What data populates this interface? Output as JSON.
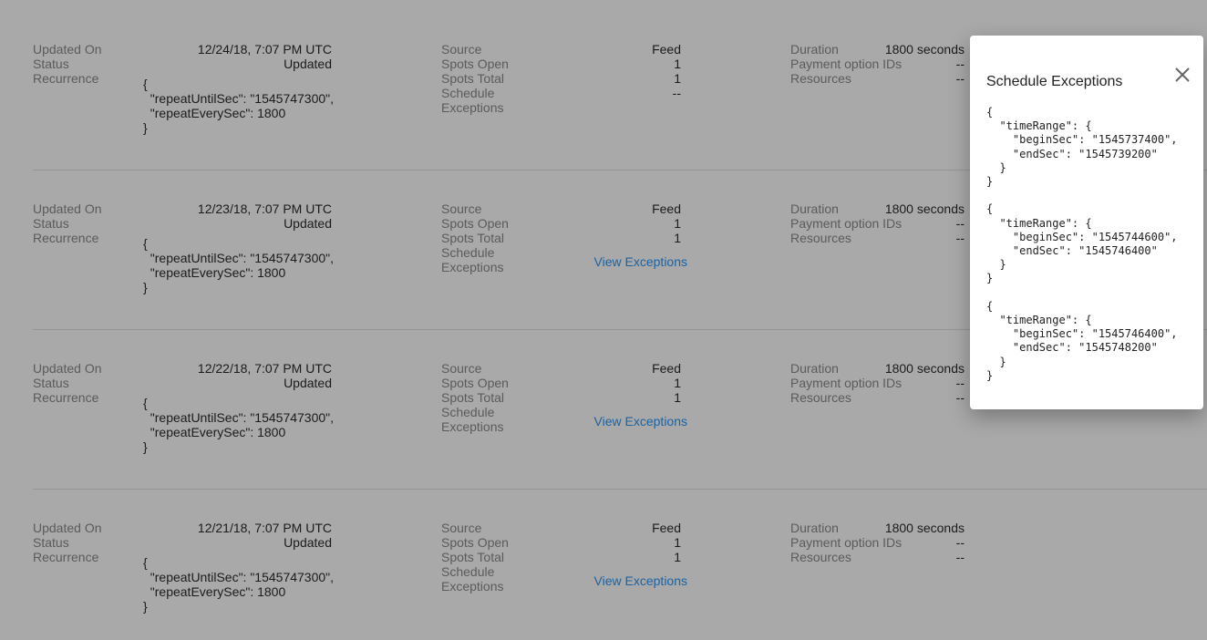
{
  "labels": {
    "updated_on": "Updated On",
    "status": "Status",
    "recurrence": "Recurrence",
    "source": "Source",
    "spots_open": "Spots Open",
    "spots_total": "Spots Total",
    "schedule_exceptions_1": "Schedule",
    "schedule_exceptions_2": "Exceptions",
    "duration": "Duration",
    "payment_option_ids": "Payment option IDs",
    "resources": "Resources"
  },
  "records": [
    {
      "updated_on": "12/24/18, 7:07 PM UTC",
      "status": "Updated",
      "recurrence": "{\n  \"repeatUntilSec\": \"1545747300\",\n  \"repeatEverySec\": 1800\n}",
      "source": "Feed",
      "spots_open": "1",
      "spots_total": "1",
      "schedule_exceptions": "--",
      "duration": "1800 seconds",
      "payment_option_ids": "--",
      "resources": "--"
    },
    {
      "updated_on": "12/23/18, 7:07 PM UTC",
      "status": "Updated",
      "recurrence": "{\n  \"repeatUntilSec\": \"1545747300\",\n  \"repeatEverySec\": 1800\n}",
      "source": "Feed",
      "spots_open": "1",
      "spots_total": "1",
      "schedule_exceptions": "View Exceptions",
      "duration": "1800 seconds",
      "payment_option_ids": "--",
      "resources": "--"
    },
    {
      "updated_on": "12/22/18, 7:07 PM UTC",
      "status": "Updated",
      "recurrence": "{\n  \"repeatUntilSec\": \"1545747300\",\n  \"repeatEverySec\": 1800\n}",
      "source": "Feed",
      "spots_open": "1",
      "spots_total": "1",
      "schedule_exceptions": "View Exceptions",
      "duration": "1800 seconds",
      "payment_option_ids": "--",
      "resources": "--"
    },
    {
      "updated_on": "12/21/18, 7:07 PM UTC",
      "status": "Updated",
      "recurrence": "{\n  \"repeatUntilSec\": \"1545747300\",\n  \"repeatEverySec\": 1800\n}",
      "source": "Feed",
      "spots_open": "1",
      "spots_total": "1",
      "schedule_exceptions": "View Exceptions",
      "duration": "1800 seconds",
      "payment_option_ids": "--",
      "resources": "--"
    }
  ],
  "modal": {
    "title": "Schedule Exceptions",
    "close_icon": "close-icon",
    "code": "{\n  \"timeRange\": {\n    \"beginSec\": \"1545737400\",\n    \"endSec\": \"1545739200\"\n  }\n}\n\n{\n  \"timeRange\": {\n    \"beginSec\": \"1545744600\",\n    \"endSec\": \"1545746400\"\n  }\n}\n\n{\n  \"timeRange\": {\n    \"beginSec\": \"1545746400\",\n    \"endSec\": \"1545748200\"\n  }\n}"
  },
  "colors": {
    "overlay_bg": "#a9a9a9",
    "link": "#1b63a3",
    "label": "#5b5b5b"
  }
}
